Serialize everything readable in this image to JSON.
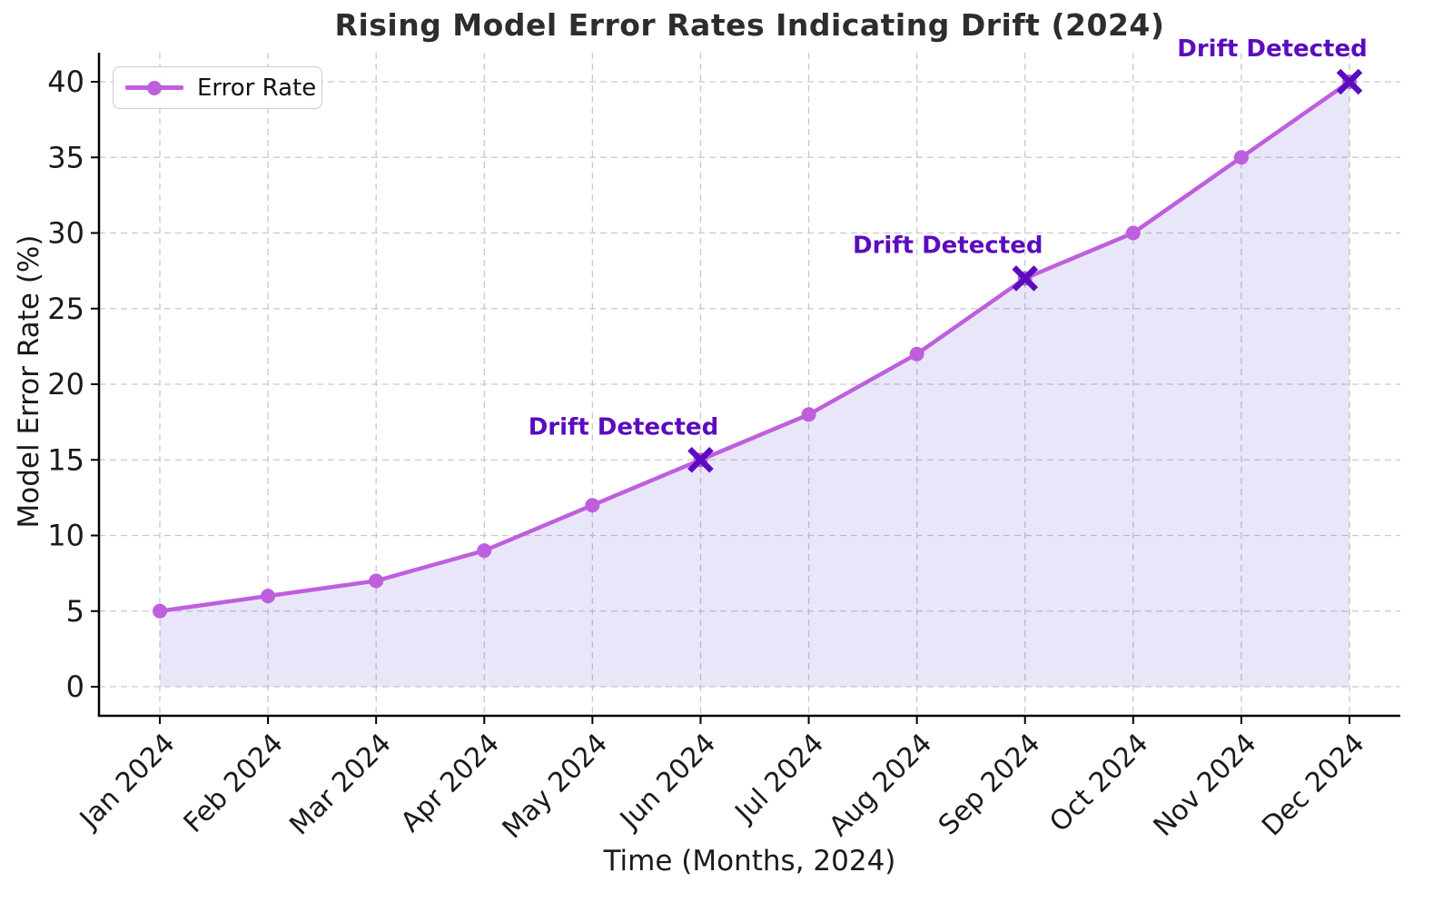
{
  "title": "Rising Model Error Rates Indicating Drift (2024)",
  "legend": {
    "items": [
      {
        "label": "Error Rate"
      }
    ]
  },
  "colors": {
    "line": "#be5fdd",
    "marker": "#be5fdd",
    "area_fill": "rgba(116, 88, 214, 0.15)",
    "drift_accent": "#5a0cbe",
    "grid": "#c9c9c9",
    "spine": "#000000",
    "tick_text": "#1a1a1a",
    "title_text": "#2d2d2d"
  },
  "chart_data": {
    "type": "line",
    "title": "Rising Model Error Rates Indicating Drift (2024)",
    "xlabel": "Time (Months, 2024)",
    "ylabel": "Model Error Rate (%)",
    "categories": [
      "Jan 2024",
      "Feb 2024",
      "Mar 2024",
      "Apr 2024",
      "May 2024",
      "Jun 2024",
      "Jul 2024",
      "Aug 2024",
      "Sep 2024",
      "Oct 2024",
      "Nov 2024",
      "Dec 2024"
    ],
    "series": [
      {
        "name": "Error Rate",
        "values": [
          5,
          6,
          7,
          9,
          12,
          15,
          18,
          22,
          27,
          30,
          35,
          40
        ]
      }
    ],
    "y_ticks": [
      0,
      5,
      10,
      15,
      20,
      25,
      30,
      35,
      40
    ],
    "ylim": [
      0,
      42
    ],
    "grid": true,
    "grid_style": "dashed",
    "legend_position": "upper-left",
    "area_fill": true,
    "marker": "circle",
    "annotations": [
      {
        "label": "Drift Detected",
        "category": "Jun 2024",
        "index": 5,
        "value": 15,
        "marker": "X"
      },
      {
        "label": "Drift Detected",
        "category": "Sep 2024",
        "index": 8,
        "value": 27,
        "marker": "X"
      },
      {
        "label": "Drift Detected",
        "category": "Dec 2024",
        "index": 11,
        "value": 40,
        "marker": "X"
      }
    ]
  }
}
